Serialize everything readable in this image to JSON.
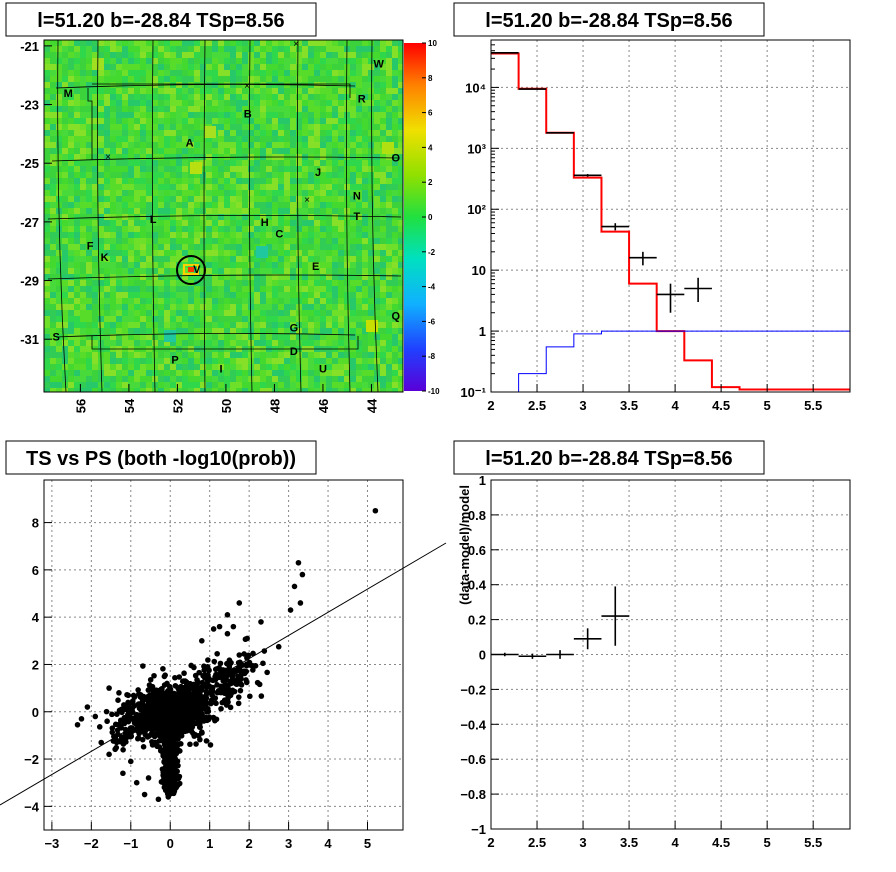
{
  "titles": {
    "tl": "l=51.20 b=-28.84 TSp=8.56",
    "tr": "l=51.20 b=-28.84 TSp=8.56",
    "bl": "TS vs PS (both -log10(prob))",
    "br": "l=51.20 b=-28.84 TSp=8.56"
  },
  "chart_data": [
    {
      "id": "skymap",
      "type": "heatmap",
      "title": "l=51.20 b=-28.84 TSp=8.56",
      "xlim": [
        57.5,
        42.7
      ],
      "ylim": [
        -32.8,
        -20.8
      ],
      "xticks": [
        "56",
        "54",
        "52",
        "50",
        "48",
        "46",
        "44"
      ],
      "xtick_values": [
        56,
        54,
        52,
        50,
        48,
        46,
        44
      ],
      "yticks": [
        "-21",
        "-23",
        "-25",
        "-27",
        "-29",
        "-31"
      ],
      "ytick_values": [
        -21,
        -23,
        -25,
        -27,
        -29,
        -31
      ],
      "colorbar": {
        "range": [
          -10,
          10
        ],
        "ticks": [
          "10",
          "8",
          "6",
          "4",
          "2",
          "0",
          "-2",
          "-4",
          "-6",
          "-8",
          "-10"
        ]
      },
      "source_labels": [
        {
          "t": "M",
          "l": 56.5,
          "b": -22.6
        },
        {
          "t": "W",
          "l": 43.7,
          "b": -21.6
        },
        {
          "t": "R",
          "l": 44.4,
          "b": -22.8
        },
        {
          "t": "B",
          "l": 49.1,
          "b": -23.3
        },
        {
          "t": "A",
          "l": 51.5,
          "b": -24.3
        },
        {
          "t": "O",
          "l": 43.0,
          "b": -24.8
        },
        {
          "t": "J",
          "l": 46.2,
          "b": -25.3
        },
        {
          "t": "N",
          "l": 44.6,
          "b": -26.1
        },
        {
          "t": "L",
          "l": 53.0,
          "b": -26.9
        },
        {
          "t": "H",
          "l": 48.4,
          "b": -27.0
        },
        {
          "t": "T",
          "l": 44.6,
          "b": -26.8
        },
        {
          "t": "C",
          "l": 47.8,
          "b": -27.4
        },
        {
          "t": "F",
          "l": 55.6,
          "b": -27.8
        },
        {
          "t": "K",
          "l": 55.0,
          "b": -28.2
        },
        {
          "t": "V",
          "l": 51.2,
          "b": -28.6
        },
        {
          "t": "E",
          "l": 46.3,
          "b": -28.5
        },
        {
          "t": "Q",
          "l": 43.0,
          "b": -30.2
        },
        {
          "t": "G",
          "l": 47.2,
          "b": -30.6
        },
        {
          "t": "S",
          "l": 57.0,
          "b": -30.9
        },
        {
          "t": "D",
          "l": 47.2,
          "b": -31.4
        },
        {
          "t": "P",
          "l": 52.1,
          "b": -31.7
        },
        {
          "t": "I",
          "l": 50.2,
          "b": -32.0
        },
        {
          "t": "U",
          "l": 46.0,
          "b": -32.0
        }
      ]
    },
    {
      "id": "spectrum",
      "type": "line",
      "title": "l=51.20 b=-28.84 TSp=8.56",
      "xlim": [
        2,
        5.9
      ],
      "ylim": [
        0.1,
        60000
      ],
      "yscale": "log",
      "xticks": [
        "2",
        "2.5",
        "3",
        "3.5",
        "4",
        "4.5",
        "5",
        "5.5"
      ],
      "xtick_values": [
        2,
        2.5,
        3,
        3.5,
        4,
        4.5,
        5,
        5.5
      ],
      "yticks": [
        "10⁻¹",
        "1",
        "10",
        "10²",
        "10³",
        "10⁴"
      ],
      "ytick_values": [
        0.1,
        1,
        10,
        100,
        1000,
        10000
      ],
      "series": [
        {
          "edges": [
            2,
            2.3,
            2.6,
            2.9,
            3.2,
            3.5,
            3.8,
            4.1,
            4.4,
            4.7,
            5.0,
            5.3,
            5.6,
            5.9
          ],
          "values": [
            36000,
            9500,
            1800,
            330,
            43,
            6,
            1,
            0.33,
            0.12,
            0.11,
            0.11,
            0.11,
            0.11
          ],
          "color": "#ff0000"
        },
        {
          "edges": [
            2,
            2.3,
            2.6,
            2.9,
            3.2,
            3.5,
            3.8,
            4.1,
            4.4,
            4.7,
            5.0,
            5.3,
            5.6,
            5.9
          ],
          "values": [
            0.05,
            0.2,
            0.55,
            0.9,
            1,
            1,
            1,
            1,
            1,
            1,
            1,
            1,
            1
          ],
          "color": "#0000ff"
        }
      ],
      "points": [
        {
          "x": 2.15,
          "y": 37000,
          "xerr": 0.15,
          "ylo": 36800,
          "yhi": 37200
        },
        {
          "x": 2.45,
          "y": 9400,
          "xerr": 0.15,
          "ylo": 9300,
          "yhi": 9500
        },
        {
          "x": 2.75,
          "y": 1800,
          "xerr": 0.15,
          "ylo": 1760,
          "yhi": 1840
        },
        {
          "x": 3.05,
          "y": 360,
          "xerr": 0.15,
          "ylo": 342,
          "yhi": 378
        },
        {
          "x": 3.35,
          "y": 52,
          "xerr": 0.15,
          "ylo": 45,
          "yhi": 59
        },
        {
          "x": 3.65,
          "y": 16,
          "xerr": 0.15,
          "ylo": 12,
          "yhi": 20
        },
        {
          "x": 3.95,
          "y": 4,
          "xerr": 0.15,
          "ylo": 2,
          "yhi": 6
        },
        {
          "x": 4.25,
          "y": 5,
          "xerr": 0.15,
          "ylo": 3,
          "yhi": 7.5
        }
      ]
    },
    {
      "id": "scatter",
      "type": "scatter",
      "title": "TS vs PS (both -log10(prob))",
      "xlim": [
        -3.2,
        5.9
      ],
      "ylim": [
        -5,
        9.8
      ],
      "xticks": [
        "−3",
        "−2",
        "−1",
        "0",
        "1",
        "2",
        "3",
        "4",
        "5"
      ],
      "xtick_values": [
        -3,
        -2,
        -1,
        0,
        1,
        2,
        3,
        4,
        5
      ],
      "yticks": [
        "−4",
        "−2",
        "0",
        "2",
        "4",
        "6",
        "8"
      ],
      "ytick_values": [
        -4,
        -2,
        0,
        2,
        4,
        6,
        8
      ],
      "diagonal": [
        [
          -4,
          -3.8
        ],
        [
          7,
          6.5
        ]
      ],
      "outliers": [
        [
          5.2,
          8.5
        ],
        [
          3.25,
          6.3
        ],
        [
          3.35,
          5.8
        ],
        [
          3.15,
          5.3
        ],
        [
          3.3,
          4.6
        ],
        [
          3.05,
          4.3
        ],
        [
          1.75,
          4.6
        ],
        [
          2.3,
          3.8
        ],
        [
          2.75,
          2.75
        ],
        [
          2.35,
          2.05
        ],
        [
          1.75,
          2.4
        ],
        [
          1.45,
          3.3
        ],
        [
          1.6,
          3.6
        ],
        [
          1.95,
          3.1
        ],
        [
          1.1,
          3.5
        ],
        [
          1.45,
          4.1
        ],
        [
          0.8,
          3.0
        ],
        [
          1.25,
          3.6
        ],
        [
          -2.35,
          -0.55
        ],
        [
          -1.9,
          -0.2
        ],
        [
          -1.6,
          -0.4
        ],
        [
          -1.75,
          -1.3
        ],
        [
          -1.55,
          -1.8
        ],
        [
          -1.2,
          -2.6
        ],
        [
          -0.65,
          -3.5
        ],
        [
          -0.3,
          -3.7
        ],
        [
          -0.05,
          -3.6
        ],
        [
          -1.0,
          -2.1
        ],
        [
          -0.55,
          -2.8
        ],
        [
          -2.1,
          0.2
        ],
        [
          -1.55,
          1.0
        ],
        [
          -1.3,
          0.8
        ],
        [
          -0.85,
          -3.0
        ],
        [
          -0.15,
          -3.2
        ],
        [
          0.05,
          -2.9
        ],
        [
          -1.4,
          -1.1
        ],
        [
          -2.25,
          -0.3
        ]
      ]
    },
    {
      "id": "residual",
      "type": "scatter",
      "title": "l=51.20 b=-28.84 TSp=8.56",
      "ylabel": "(data-model)/model",
      "xlim": [
        2,
        5.9
      ],
      "ylim": [
        -1,
        1
      ],
      "xticks": [
        "2",
        "2.5",
        "3",
        "3.5",
        "4",
        "4.5",
        "5",
        "5.5"
      ],
      "xtick_values": [
        2,
        2.5,
        3,
        3.5,
        4,
        4.5,
        5,
        5.5
      ],
      "yticks": [
        "−1",
        "−0.8",
        "−0.6",
        "−0.4",
        "−0.2",
        "0",
        "0.2",
        "0.4",
        "0.6",
        "0.8",
        "1"
      ],
      "ytick_values": [
        -1,
        -0.8,
        -0.6,
        -0.4,
        -0.2,
        0,
        0.2,
        0.4,
        0.6,
        0.8,
        1
      ],
      "points": [
        {
          "x": 2.15,
          "y": 0.0,
          "xerr": 0.15,
          "ylo": -0.01,
          "yhi": 0.01
        },
        {
          "x": 2.45,
          "y": -0.01,
          "xerr": 0.15,
          "ylo": -0.025,
          "yhi": 0.005
        },
        {
          "x": 2.75,
          "y": 0.0,
          "xerr": 0.15,
          "ylo": -0.025,
          "yhi": 0.025
        },
        {
          "x": 3.05,
          "y": 0.09,
          "xerr": 0.15,
          "ylo": 0.03,
          "yhi": 0.15
        },
        {
          "x": 3.35,
          "y": 0.22,
          "xerr": 0.15,
          "ylo": 0.05,
          "yhi": 0.39
        }
      ]
    }
  ]
}
